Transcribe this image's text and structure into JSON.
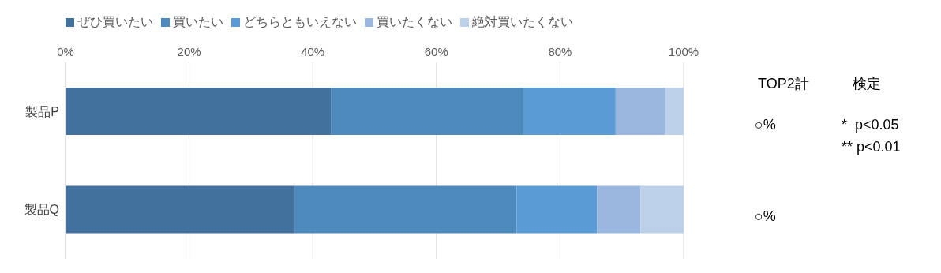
{
  "chart_data": {
    "type": "bar",
    "orientation": "horizontal",
    "stacked": true,
    "categories": [
      "製品P",
      "製品Q"
    ],
    "series": [
      {
        "name": "ぜひ買いたい",
        "color": "#41719c",
        "values": [
          43,
          37
        ]
      },
      {
        "name": "買いたい",
        "color": "#4e89be",
        "values": [
          31,
          36
        ]
      },
      {
        "name": "どちらともいえない",
        "color": "#5b9bd5",
        "values": [
          15,
          13
        ]
      },
      {
        "name": "買いたくない",
        "color": "#9ab8df",
        "values": [
          8,
          7
        ]
      },
      {
        "name": "絶対買いたくない",
        "color": "#bdd0ea",
        "values": [
          3,
          7
        ]
      }
    ],
    "xlim": [
      0,
      100
    ],
    "xticks": [
      {
        "value": 0,
        "label": "0%"
      },
      {
        "value": 20,
        "label": "20%"
      },
      {
        "value": 40,
        "label": "40%"
      },
      {
        "value": 60,
        "label": "60%"
      },
      {
        "value": 80,
        "label": "80%"
      },
      {
        "value": 100,
        "label": "100%"
      }
    ],
    "grid": "x",
    "legend": "top",
    "annotations": [
      "TOP2計",
      "検定",
      "○%",
      "○%",
      "*  p<0.05",
      "** p<0.01"
    ]
  }
}
